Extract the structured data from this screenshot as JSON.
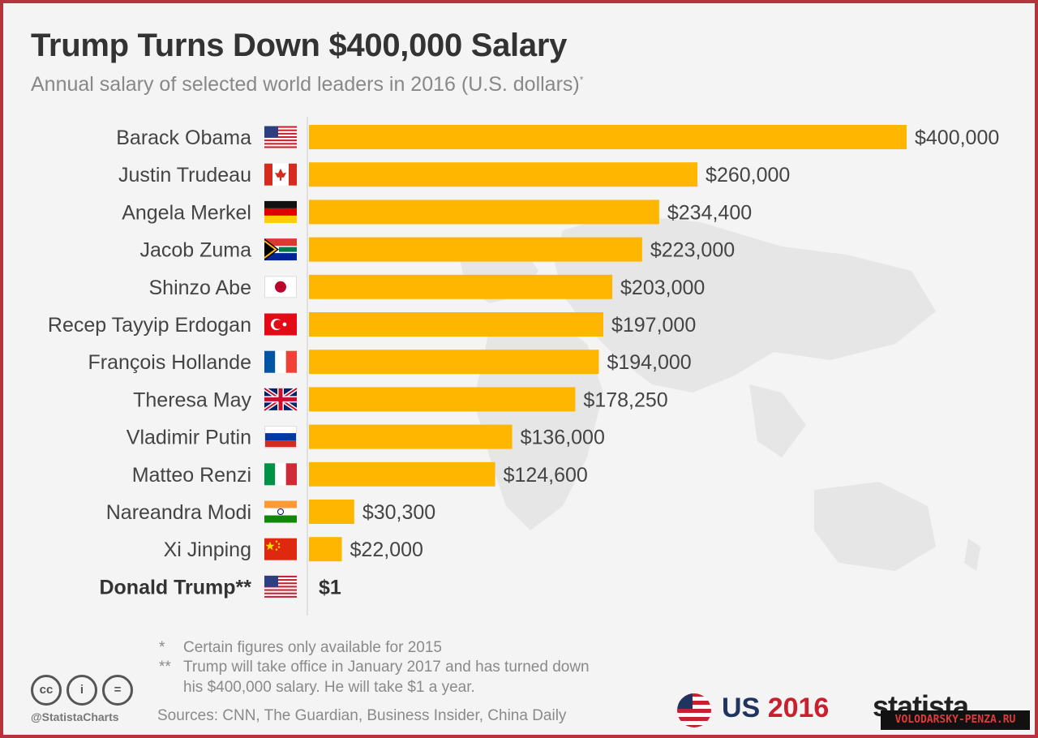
{
  "header": {
    "title": "Trump Turns Down $400,000 Salary",
    "subtitle": "Annual salary of selected world leaders in 2016 (U.S. dollars)",
    "subtitle_mark": "*"
  },
  "chart_data": {
    "type": "bar",
    "orientation": "horizontal",
    "title": "Trump Turns Down $400,000 Salary",
    "subtitle": "Annual salary of selected world leaders in 2016 (U.S. dollars)*",
    "categories": [
      "Barack Obama",
      "Justin Trudeau",
      "Angela Merkel",
      "Jacob Zuma",
      "Shinzo Abe",
      "Recep Tayyip Erdogan",
      "François Hollande",
      "Theresa May",
      "Vladimir Putin",
      "Matteo Renzi",
      "Nareandra Modi",
      "Xi Jinping",
      "Donald Trump**"
    ],
    "values": [
      400000,
      260000,
      234400,
      223000,
      203000,
      197000,
      194000,
      178250,
      136000,
      124600,
      30300,
      22000,
      1
    ],
    "value_labels": [
      "$400,000",
      "$260,000",
      "$234,400",
      "$223,000",
      "$203,000",
      "$197,000",
      "$194,000",
      "$178,250",
      "$136,000",
      "$124,600",
      "$30,300",
      "$22,000",
      "$1"
    ],
    "flags": [
      "us",
      "ca",
      "de",
      "za",
      "jp",
      "tr",
      "fr",
      "gb",
      "ru",
      "it",
      "in",
      "cn",
      "us"
    ],
    "highlight_index": 12,
    "xlim": [
      0,
      400000
    ],
    "bar_color": "#ffb600",
    "grid": false,
    "legend": "none"
  },
  "footer": {
    "note1_mark": "*",
    "note1": "Certain figures only available for 2015",
    "note2_mark": "**",
    "note2_line1": "Trump will take office in January 2017 and has turned down",
    "note2_line2": "his $400,000 salary. He will take $1 a year.",
    "sources": "Sources: CNN, The Guardian, Business Insider, China Daily",
    "handle": "@StatistaCharts",
    "cc_icons": [
      "cc-icon",
      "attribution-icon",
      "equal-icon"
    ],
    "cc_glyphs": [
      "cc",
      "i",
      "="
    ],
    "badge_us": "US",
    "badge_year": "2016",
    "brand": "statista",
    "watermark": "VOLODARSKY-PENZA.RU"
  },
  "colors": {
    "frame_border": "#b5343c",
    "background": "#f4f4f4",
    "bar": "#ffb600",
    "badge_navy": "#1f3560",
    "badge_red": "#c8202f"
  }
}
